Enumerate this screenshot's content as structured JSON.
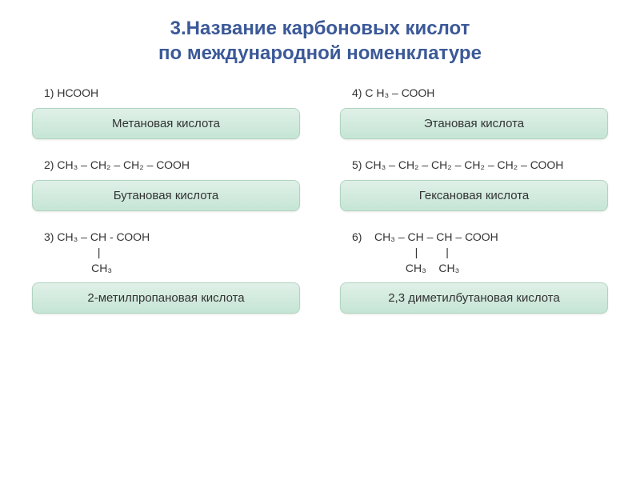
{
  "title": {
    "text": "3.Название карбоновых кислот\nпо международной номенклатуре",
    "fontsize": 24,
    "color": "#3b5998"
  },
  "items": [
    {
      "formula_number": "1)",
      "formula_text": "НСООН",
      "answer": "Метановая кислота"
    },
    {
      "formula_number": "4)",
      "formula_text": "С Н₃ – СООН",
      "answer": "Этановая кислота"
    },
    {
      "formula_number": "2)",
      "formula_text": "СН₃ – СН₂ – СН₂ – СООН",
      "answer": "Бутановая кислота"
    },
    {
      "formula_number": "5)",
      "formula_text": "СН₃ – СН₂ – СН₂ – СН₂ – СН₂ – СООН",
      "answer": "Гексановая кислота"
    },
    {
      "formula_number": "3)",
      "formula_text": "СН₃ – СН - СООН\n             |\n           СН₃",
      "answer": "2-метилпропановая кислота"
    },
    {
      "formula_number": "6)",
      "formula_text": "   СН₃ – СН – СН – СООН\n                |         |\n             СН₃    СН₃",
      "answer": "2,3 диметилбутановая кислота"
    }
  ],
  "styling": {
    "formula_fontsize": 14,
    "answer_fontsize": 15,
    "background_color": "#ffffff",
    "formula_color": "#333333",
    "answer_bg_gradient_start": "#e0f0e8",
    "answer_bg_gradient_end": "#c5e5d5",
    "answer_border_color": "#b0d4c0",
    "answer_border_radius": 8
  }
}
